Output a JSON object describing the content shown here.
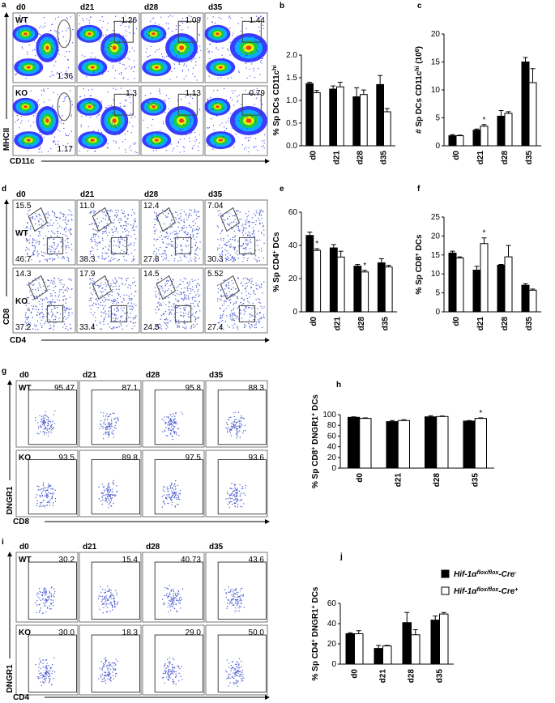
{
  "flow_panels": [
    {
      "letter": "a",
      "days": [
        "d0",
        "d21",
        "d28",
        "d35"
      ],
      "ylabel": "MHCII",
      "xlabel": "CD11c",
      "rows": [
        {
          "label": "WT",
          "gates": [
            [
              "1.36"
            ],
            [
              "1.26"
            ],
            [
              "1.09"
            ],
            [
              "1.44"
            ]
          ]
        },
        {
          "label": "KO",
          "gates": [
            [
              "1.17"
            ],
            [
              "1.3"
            ],
            [
              "1.13"
            ],
            [
              "0.79"
            ]
          ]
        }
      ]
    },
    {
      "letter": "d",
      "days": [
        "d0",
        "d21",
        "d28",
        "d35"
      ],
      "ylabel": "CD8",
      "xlabel": "CD4",
      "rows": [
        {
          "label": "WT",
          "gates": [
            [
              "15.5",
              "46.7"
            ],
            [
              "11.0",
              "38.3"
            ],
            [
              "12.4",
              "27.8"
            ],
            [
              "7.04",
              "30.3"
            ]
          ]
        },
        {
          "label": "KO",
          "gates": [
            [
              "14.3",
              "37.2"
            ],
            [
              "17.9",
              "33.4"
            ],
            [
              "14.5",
              "24.5"
            ],
            [
              "5.52",
              "27.4"
            ]
          ]
        }
      ]
    },
    {
      "letter": "g",
      "days": [
        "d0",
        "d21",
        "d28",
        "d35"
      ],
      "ylabel": "DNGR1",
      "xlabel": "CD8",
      "rows": [
        {
          "label": "WT",
          "gates": [
            [
              "95.47"
            ],
            [
              "87.1"
            ],
            [
              "95.8"
            ],
            [
              "88.3"
            ]
          ]
        },
        {
          "label": "KO",
          "gates": [
            [
              "93.5"
            ],
            [
              "89.8"
            ],
            [
              "97.5"
            ],
            [
              "93.6"
            ]
          ]
        }
      ]
    },
    {
      "letter": "i",
      "days": [
        "d0",
        "d21",
        "d28",
        "d35"
      ],
      "ylabel": "DNGR1",
      "xlabel": "CD4",
      "rows": [
        {
          "label": "WT",
          "gates": [
            [
              "30.2"
            ],
            [
              "15.4"
            ],
            [
              "40.73"
            ],
            [
              "43.6"
            ]
          ]
        },
        {
          "label": "KO",
          "gates": [
            [
              "30.0"
            ],
            [
              "18.3"
            ],
            [
              "29.0"
            ],
            [
              "50.0"
            ]
          ]
        }
      ]
    }
  ],
  "legend": [
    {
      "color": "#000000",
      "parts": [
        {
          "text": "Hif-1α"
        },
        {
          "text": "flox/flox",
          "sup": true
        },
        {
          "text": "-Cre"
        },
        {
          "text": "-",
          "sup": true
        }
      ]
    },
    {
      "color": "#ffffff",
      "parts": [
        {
          "text": "Hif-1α"
        },
        {
          "text": "flox/flox",
          "sup": true
        },
        {
          "text": "-Cre"
        },
        {
          "text": "+",
          "sup": true
        }
      ]
    }
  ],
  "chart_data": [
    {
      "type": "bar",
      "letter": "b",
      "ylabel": [
        {
          "text": "% Sp DCs CD11c"
        },
        {
          "text": "hi",
          "sup": true
        }
      ],
      "categories": [
        "d0",
        "d21",
        "d28",
        "d35"
      ],
      "ylim": [
        0,
        2
      ],
      "yticks": [
        {
          "value": 0,
          "label": "0.0"
        },
        0.5,
        {
          "value": 1,
          "label": "1.0"
        },
        1.5,
        {
          "value": 2,
          "label": "2.0"
        }
      ],
      "series": [
        {
          "color": "#000000",
          "values": [
            1.37,
            1.25,
            1.08,
            1.35
          ],
          "errors": [
            0.03,
            0.07,
            0.2,
            0.2
          ],
          "significance": [
            null,
            null,
            null,
            null
          ]
        },
        {
          "color": "#ffffff",
          "values": [
            1.17,
            1.3,
            1.13,
            0.75
          ],
          "errors": [
            0.05,
            0.1,
            0.1,
            0.07
          ],
          "significance": [
            null,
            null,
            null,
            null
          ]
        }
      ]
    },
    {
      "type": "bar",
      "letter": "c",
      "ylabel": [
        {
          "text": "# Sp DCs CD11c"
        },
        {
          "text": "hi",
          "sup": true
        },
        {
          "text": " (10"
        },
        {
          "text": "6",
          "sup": true
        },
        {
          "text": ")"
        }
      ],
      "categories": [
        "d0",
        "d21",
        "d28",
        "d35"
      ],
      "ylim": [
        0,
        20
      ],
      "yticks": [
        0,
        5,
        10,
        15,
        20
      ],
      "series": [
        {
          "color": "#000000",
          "values": [
            1.8,
            2.8,
            5.3,
            15
          ],
          "errors": [
            0.2,
            0.2,
            1,
            0.8
          ],
          "significance": [
            null,
            null,
            null,
            null
          ]
        },
        {
          "color": "#ffffff",
          "values": [
            1.8,
            3.5,
            5.8,
            11.3
          ],
          "errors": [
            0.1,
            0.3,
            0.3,
            2.5
          ],
          "significance": [
            null,
            "*",
            null,
            null
          ]
        }
      ]
    },
    {
      "type": "bar",
      "letter": "e",
      "ylabel": [
        {
          "text": "% Sp CD4"
        },
        {
          "text": "+",
          "sup": true
        },
        {
          "text": " DCs"
        }
      ],
      "categories": [
        "d0",
        "d21",
        "d28",
        "d35"
      ],
      "ylim": [
        0,
        60
      ],
      "yticks": [
        0,
        20,
        40,
        60
      ],
      "series": [
        {
          "color": "#000000",
          "values": [
            46,
            38.5,
            27.5,
            29.5
          ],
          "errors": [
            2,
            2,
            1,
            2.5
          ],
          "significance": [
            null,
            null,
            null,
            null
          ]
        },
        {
          "color": "#ffffff",
          "values": [
            37,
            33,
            24,
            27
          ],
          "errors": [
            1,
            3.5,
            1,
            1
          ],
          "significance": [
            "*",
            null,
            "*",
            null
          ]
        }
      ]
    },
    {
      "type": "bar",
      "letter": "f",
      "ylabel": [
        {
          "text": "% Sp CD8"
        },
        {
          "text": "+",
          "sup": true
        },
        {
          "text": " DCs"
        }
      ],
      "categories": [
        "d0",
        "d21",
        "d28",
        "d35"
      ],
      "ylim": [
        0,
        25
      ],
      "yticks": [
        0,
        5,
        10,
        15,
        20,
        25
      ],
      "series": [
        {
          "color": "#000000",
          "values": [
            15.5,
            11,
            12.3,
            7
          ],
          "errors": [
            0.5,
            1,
            0.2,
            0.4
          ],
          "significance": [
            null,
            null,
            null,
            null
          ]
        },
        {
          "color": "#ffffff",
          "values": [
            14.2,
            18,
            14.5,
            5.7
          ],
          "errors": [
            0.3,
            1.5,
            3,
            0.3
          ],
          "significance": [
            null,
            "*",
            null,
            null
          ]
        }
      ]
    },
    {
      "type": "bar",
      "letter": "h",
      "ylabel": [
        {
          "text": "% Sp CD8"
        },
        {
          "text": "+",
          "sup": true
        },
        {
          "text": " DNGR1"
        },
        {
          "text": "+",
          "sup": true
        },
        {
          "text": " DCs"
        }
      ],
      "categories": [
        "d0",
        "d21",
        "d28",
        "d35"
      ],
      "ylim": [
        0,
        100
      ],
      "yticks": [
        0,
        20,
        40,
        60,
        80,
        100
      ],
      "series": [
        {
          "color": "#000000",
          "values": [
            95,
            87,
            96,
            88
          ],
          "errors": [
            1,
            2,
            2,
            1
          ],
          "significance": [
            null,
            null,
            null,
            null
          ]
        },
        {
          "color": "#ffffff",
          "values": [
            93,
            89,
            96.5,
            93
          ],
          "errors": [
            1,
            1.5,
            1,
            1
          ],
          "significance": [
            null,
            null,
            null,
            "*"
          ]
        }
      ]
    },
    {
      "type": "bar",
      "letter": "j",
      "ylabel": [
        {
          "text": "% Sp CD4"
        },
        {
          "text": "+",
          "sup": true
        },
        {
          "text": " DNGR1"
        },
        {
          "text": "+",
          "sup": true
        },
        {
          "text": " DCs"
        }
      ],
      "categories": [
        "d0",
        "d21",
        "d28",
        "d35"
      ],
      "ylim": [
        0,
        60
      ],
      "yticks": [
        0,
        20,
        40,
        60
      ],
      "series": [
        {
          "color": "#000000",
          "values": [
            30,
            15.5,
            41,
            43.5
          ],
          "errors": [
            1,
            3,
            10,
            4
          ],
          "significance": [
            null,
            null,
            null,
            null
          ]
        },
        {
          "color": "#ffffff",
          "values": [
            30,
            18,
            29,
            49.5
          ],
          "errors": [
            3,
            0.5,
            5,
            1.5
          ],
          "significance": [
            null,
            null,
            null,
            null
          ]
        }
      ]
    }
  ]
}
